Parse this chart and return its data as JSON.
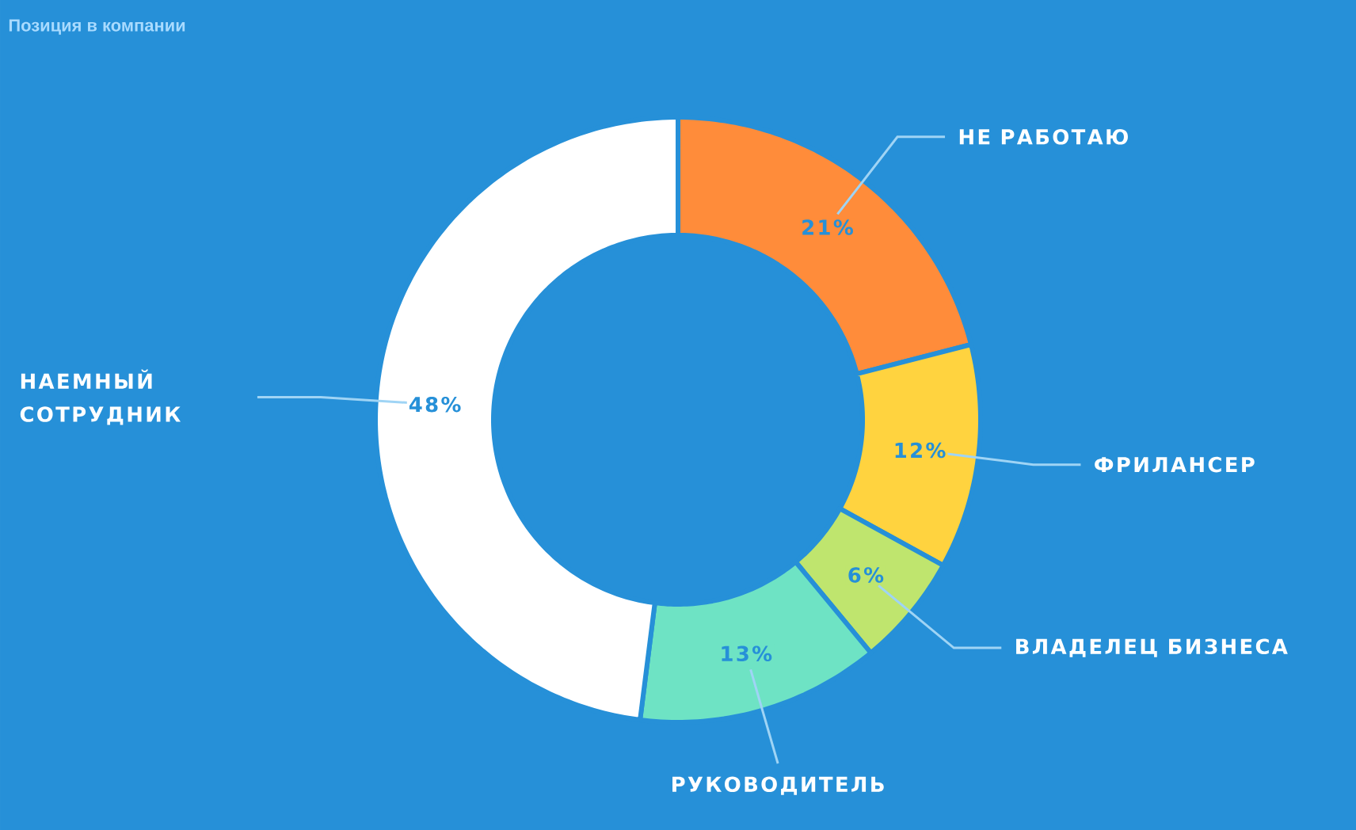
{
  "chart_data": {
    "type": "donut",
    "title": "Позиция в компании",
    "categories": [
      "НЕ РАБОТАЮ",
      "ФРИЛАНСЕР",
      "ВЛАДЕЛЕЦ БИЗНЕСА",
      "РУКОВОДИТЕЛЬ",
      "НАЕМНЫЙ СОТРУДНИК"
    ],
    "values": [
      21,
      12,
      6,
      13,
      48
    ],
    "value_labels": [
      "21%",
      "12%",
      "6%",
      "13%",
      "48%"
    ],
    "colors": [
      "#ff8c3a",
      "#ffd33f",
      "#bfe56e",
      "#6ee3c4",
      "#ffffff"
    ]
  }
}
